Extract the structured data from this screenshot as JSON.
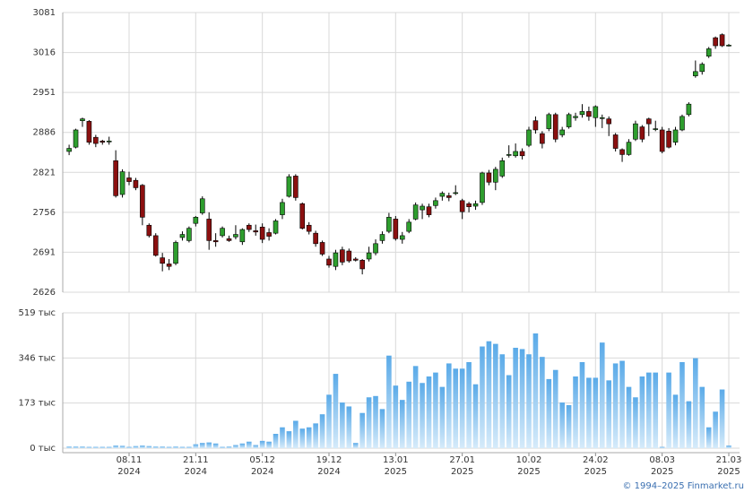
{
  "chart_data": {
    "type": "candlestick",
    "categories": [
      null,
      null,
      null,
      null,
      null,
      null,
      null,
      null,
      null,
      "08.11",
      null,
      null,
      null,
      null,
      null,
      null,
      null,
      null,
      null,
      "21.11",
      null,
      null,
      null,
      null,
      null,
      null,
      null,
      null,
      null,
      "05.12",
      null,
      null,
      null,
      null,
      null,
      null,
      null,
      null,
      null,
      "19.12",
      null,
      null,
      null,
      null,
      null,
      null,
      null,
      null,
      null,
      "13.01",
      null,
      null,
      null,
      null,
      null,
      null,
      null,
      null,
      null,
      "27.01",
      null,
      null,
      null,
      null,
      null,
      null,
      null,
      null,
      null,
      "10.02",
      null,
      null,
      null,
      null,
      null,
      null,
      null,
      null,
      null,
      "24.02",
      null,
      null,
      null,
      null,
      null,
      null,
      null,
      null,
      null,
      "08.03",
      null,
      null,
      null,
      null,
      null,
      null,
      null,
      null,
      null,
      "21.03"
    ],
    "category_years": [
      null,
      null,
      null,
      null,
      null,
      null,
      null,
      null,
      null,
      "2024",
      null,
      null,
      null,
      null,
      null,
      null,
      null,
      null,
      null,
      "2024",
      null,
      null,
      null,
      null,
      null,
      null,
      null,
      null,
      null,
      "2024",
      null,
      null,
      null,
      null,
      null,
      null,
      null,
      null,
      null,
      "2024",
      null,
      null,
      null,
      null,
      null,
      null,
      null,
      null,
      null,
      "2025",
      null,
      null,
      null,
      null,
      null,
      null,
      null,
      null,
      null,
      "2025",
      null,
      null,
      null,
      null,
      null,
      null,
      null,
      null,
      null,
      "2025",
      null,
      null,
      null,
      null,
      null,
      null,
      null,
      null,
      null,
      "2025",
      null,
      null,
      null,
      null,
      null,
      null,
      null,
      null,
      null,
      "2025",
      null,
      null,
      null,
      null,
      null,
      null,
      null,
      null,
      null,
      "2025"
    ],
    "open": [
      2855,
      2862,
      2905,
      2904,
      2878,
      2872,
      2872,
      2840,
      2785,
      2812,
      2808,
      2800,
      2735,
      2718,
      2682,
      2672,
      2673,
      2715,
      2710,
      2738,
      2755,
      2745,
      2710,
      2718,
      2713,
      2716,
      2708,
      2735,
      2726,
      2732,
      2723,
      2722,
      2752,
      2782,
      2815,
      2770,
      2735,
      2722,
      2707,
      2680,
      2668,
      2695,
      2693,
      2680,
      2678,
      2680,
      2690,
      2710,
      2725,
      2745,
      2712,
      2725,
      2745,
      2760,
      2765,
      2767,
      2782,
      2783,
      2788,
      2775,
      2770,
      2766,
      2772,
      2820,
      2805,
      2815,
      2850,
      2848,
      2855,
      2865,
      2905,
      2884,
      2892,
      2915,
      2882,
      2895,
      2910,
      2915,
      2920,
      2910,
      2910,
      2908,
      2882,
      2858,
      2850,
      2875,
      2895,
      2908,
      2892,
      2890,
      2888,
      2870,
      2890,
      2915,
      2978,
      2985,
      3010,
      3040,
      3045,
      3028
    ],
    "high": [
      2866,
      2892,
      2910,
      2906,
      2882,
      2874,
      2879,
      2857,
      2826,
      2822,
      2812,
      2802,
      2738,
      2722,
      2690,
      2680,
      2710,
      2725,
      2733,
      2750,
      2782,
      2756,
      2722,
      2733,
      2718,
      2735,
      2730,
      2738,
      2736,
      2738,
      2730,
      2745,
      2778,
      2818,
      2818,
      2772,
      2740,
      2726,
      2710,
      2685,
      2695,
      2700,
      2697,
      2683,
      2680,
      2700,
      2712,
      2725,
      2755,
      2750,
      2724,
      2745,
      2772,
      2770,
      2770,
      2780,
      2790,
      2788,
      2800,
      2778,
      2773,
      2775,
      2822,
      2825,
      2830,
      2845,
      2865,
      2868,
      2860,
      2895,
      2912,
      2888,
      2918,
      2918,
      2895,
      2918,
      2918,
      2932,
      2928,
      2930,
      2915,
      2912,
      2885,
      2860,
      2875,
      2905,
      2898,
      2910,
      2905,
      2895,
      2893,
      2895,
      2915,
      2935,
      3003,
      3000,
      3025,
      3042,
      3047,
      3030
    ],
    "low": [
      2849,
      2860,
      2895,
      2866,
      2862,
      2866,
      2866,
      2780,
      2780,
      2800,
      2792,
      2735,
      2715,
      2684,
      2660,
      2662,
      2670,
      2710,
      2707,
      2733,
      2752,
      2695,
      2700,
      2715,
      2708,
      2712,
      2703,
      2724,
      2718,
      2706,
      2710,
      2720,
      2745,
      2780,
      2775,
      2728,
      2720,
      2700,
      2685,
      2666,
      2662,
      2670,
      2674,
      2676,
      2655,
      2676,
      2686,
      2705,
      2722,
      2710,
      2705,
      2722,
      2743,
      2745,
      2748,
      2762,
      2775,
      2774,
      2784,
      2745,
      2756,
      2760,
      2768,
      2800,
      2792,
      2812,
      2845,
      2845,
      2842,
      2862,
      2884,
      2860,
      2888,
      2870,
      2878,
      2892,
      2905,
      2910,
      2905,
      2895,
      2893,
      2880,
      2855,
      2838,
      2848,
      2872,
      2870,
      2880,
      2888,
      2852,
      2860,
      2865,
      2888,
      2912,
      2975,
      2980,
      3007,
      3022,
      3025,
      3026
    ],
    "close": [
      2860,
      2890,
      2908,
      2870,
      2868,
      2870,
      2872,
      2783,
      2822,
      2806,
      2796,
      2748,
      2718,
      2686,
      2673,
      2668,
      2707,
      2720,
      2730,
      2748,
      2778,
      2710,
      2708,
      2730,
      2710,
      2720,
      2728,
      2728,
      2724,
      2712,
      2717,
      2742,
      2772,
      2814,
      2780,
      2730,
      2725,
      2705,
      2688,
      2670,
      2690,
      2675,
      2677,
      2678,
      2664,
      2690,
      2705,
      2720,
      2748,
      2713,
      2718,
      2740,
      2768,
      2766,
      2752,
      2775,
      2787,
      2780,
      2788,
      2757,
      2765,
      2770,
      2820,
      2805,
      2826,
      2840,
      2850,
      2855,
      2848,
      2890,
      2890,
      2868,
      2915,
      2875,
      2890,
      2915,
      2912,
      2920,
      2912,
      2928,
      2910,
      2900,
      2860,
      2850,
      2870,
      2900,
      2875,
      2900,
      2892,
      2855,
      2862,
      2890,
      2912,
      2932,
      2985,
      2997,
      3022,
      3027,
      3027,
      3028
    ],
    "volume": [
      6,
      6,
      6,
      5,
      5,
      5,
      5,
      10,
      9,
      5,
      8,
      10,
      8,
      6,
      6,
      5,
      6,
      5,
      5,
      15,
      20,
      22,
      18,
      5,
      6,
      12,
      18,
      25,
      12,
      28,
      25,
      55,
      80,
      65,
      105,
      75,
      80,
      95,
      130,
      205,
      285,
      175,
      160,
      20,
      135,
      195,
      200,
      150,
      355,
      240,
      185,
      255,
      315,
      250,
      275,
      290,
      235,
      325,
      305,
      305,
      330,
      245,
      390,
      410,
      400,
      360,
      280,
      385,
      380,
      360,
      440,
      350,
      265,
      300,
      175,
      165,
      275,
      330,
      270,
      270,
      405,
      260,
      325,
      335,
      235,
      195,
      275,
      290,
      290,
      5,
      290,
      205,
      330,
      180,
      345,
      235,
      80,
      140,
      225,
      10
    ],
    "up_color": "#2e9e2e",
    "down_color": "#8b1010",
    "volume_color": "#5aaae8",
    "ylim": [
      2626,
      3081
    ],
    "yticks": [
      2626,
      2691,
      2756,
      2821,
      2886,
      2951,
      3016,
      3081
    ],
    "volume_ylim": [
      0,
      519
    ],
    "volume_yticks": [
      {
        "value": 0,
        "label": "0 тыс"
      },
      {
        "value": 173,
        "label": "173 тыс"
      },
      {
        "value": 346,
        "label": "346 тыс"
      },
      {
        "value": 519,
        "label": "519 тыс"
      }
    ],
    "grid": true
  },
  "source": "© 1994–2025 Finmarket.ru"
}
